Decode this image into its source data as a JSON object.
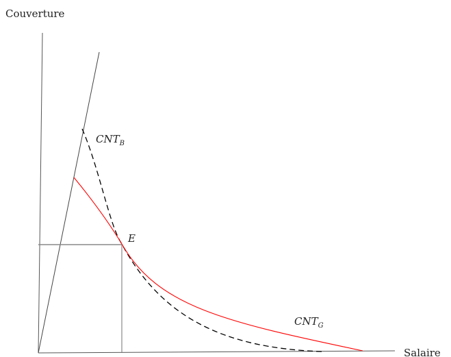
{
  "axes": {
    "y_label": "Couverture",
    "x_label": "Salaire"
  },
  "curves": {
    "cnt_b": {
      "main": "CNT",
      "sub": "B",
      "style": "dashed",
      "color": "#000000"
    },
    "cnt_g": {
      "main": "CNT",
      "sub": "G",
      "style": "solid",
      "color": "#ff0000"
    }
  },
  "point_e": {
    "label": "E"
  },
  "colors": {
    "axis": "#555555",
    "guide": "#888888",
    "ray": "#444444"
  }
}
